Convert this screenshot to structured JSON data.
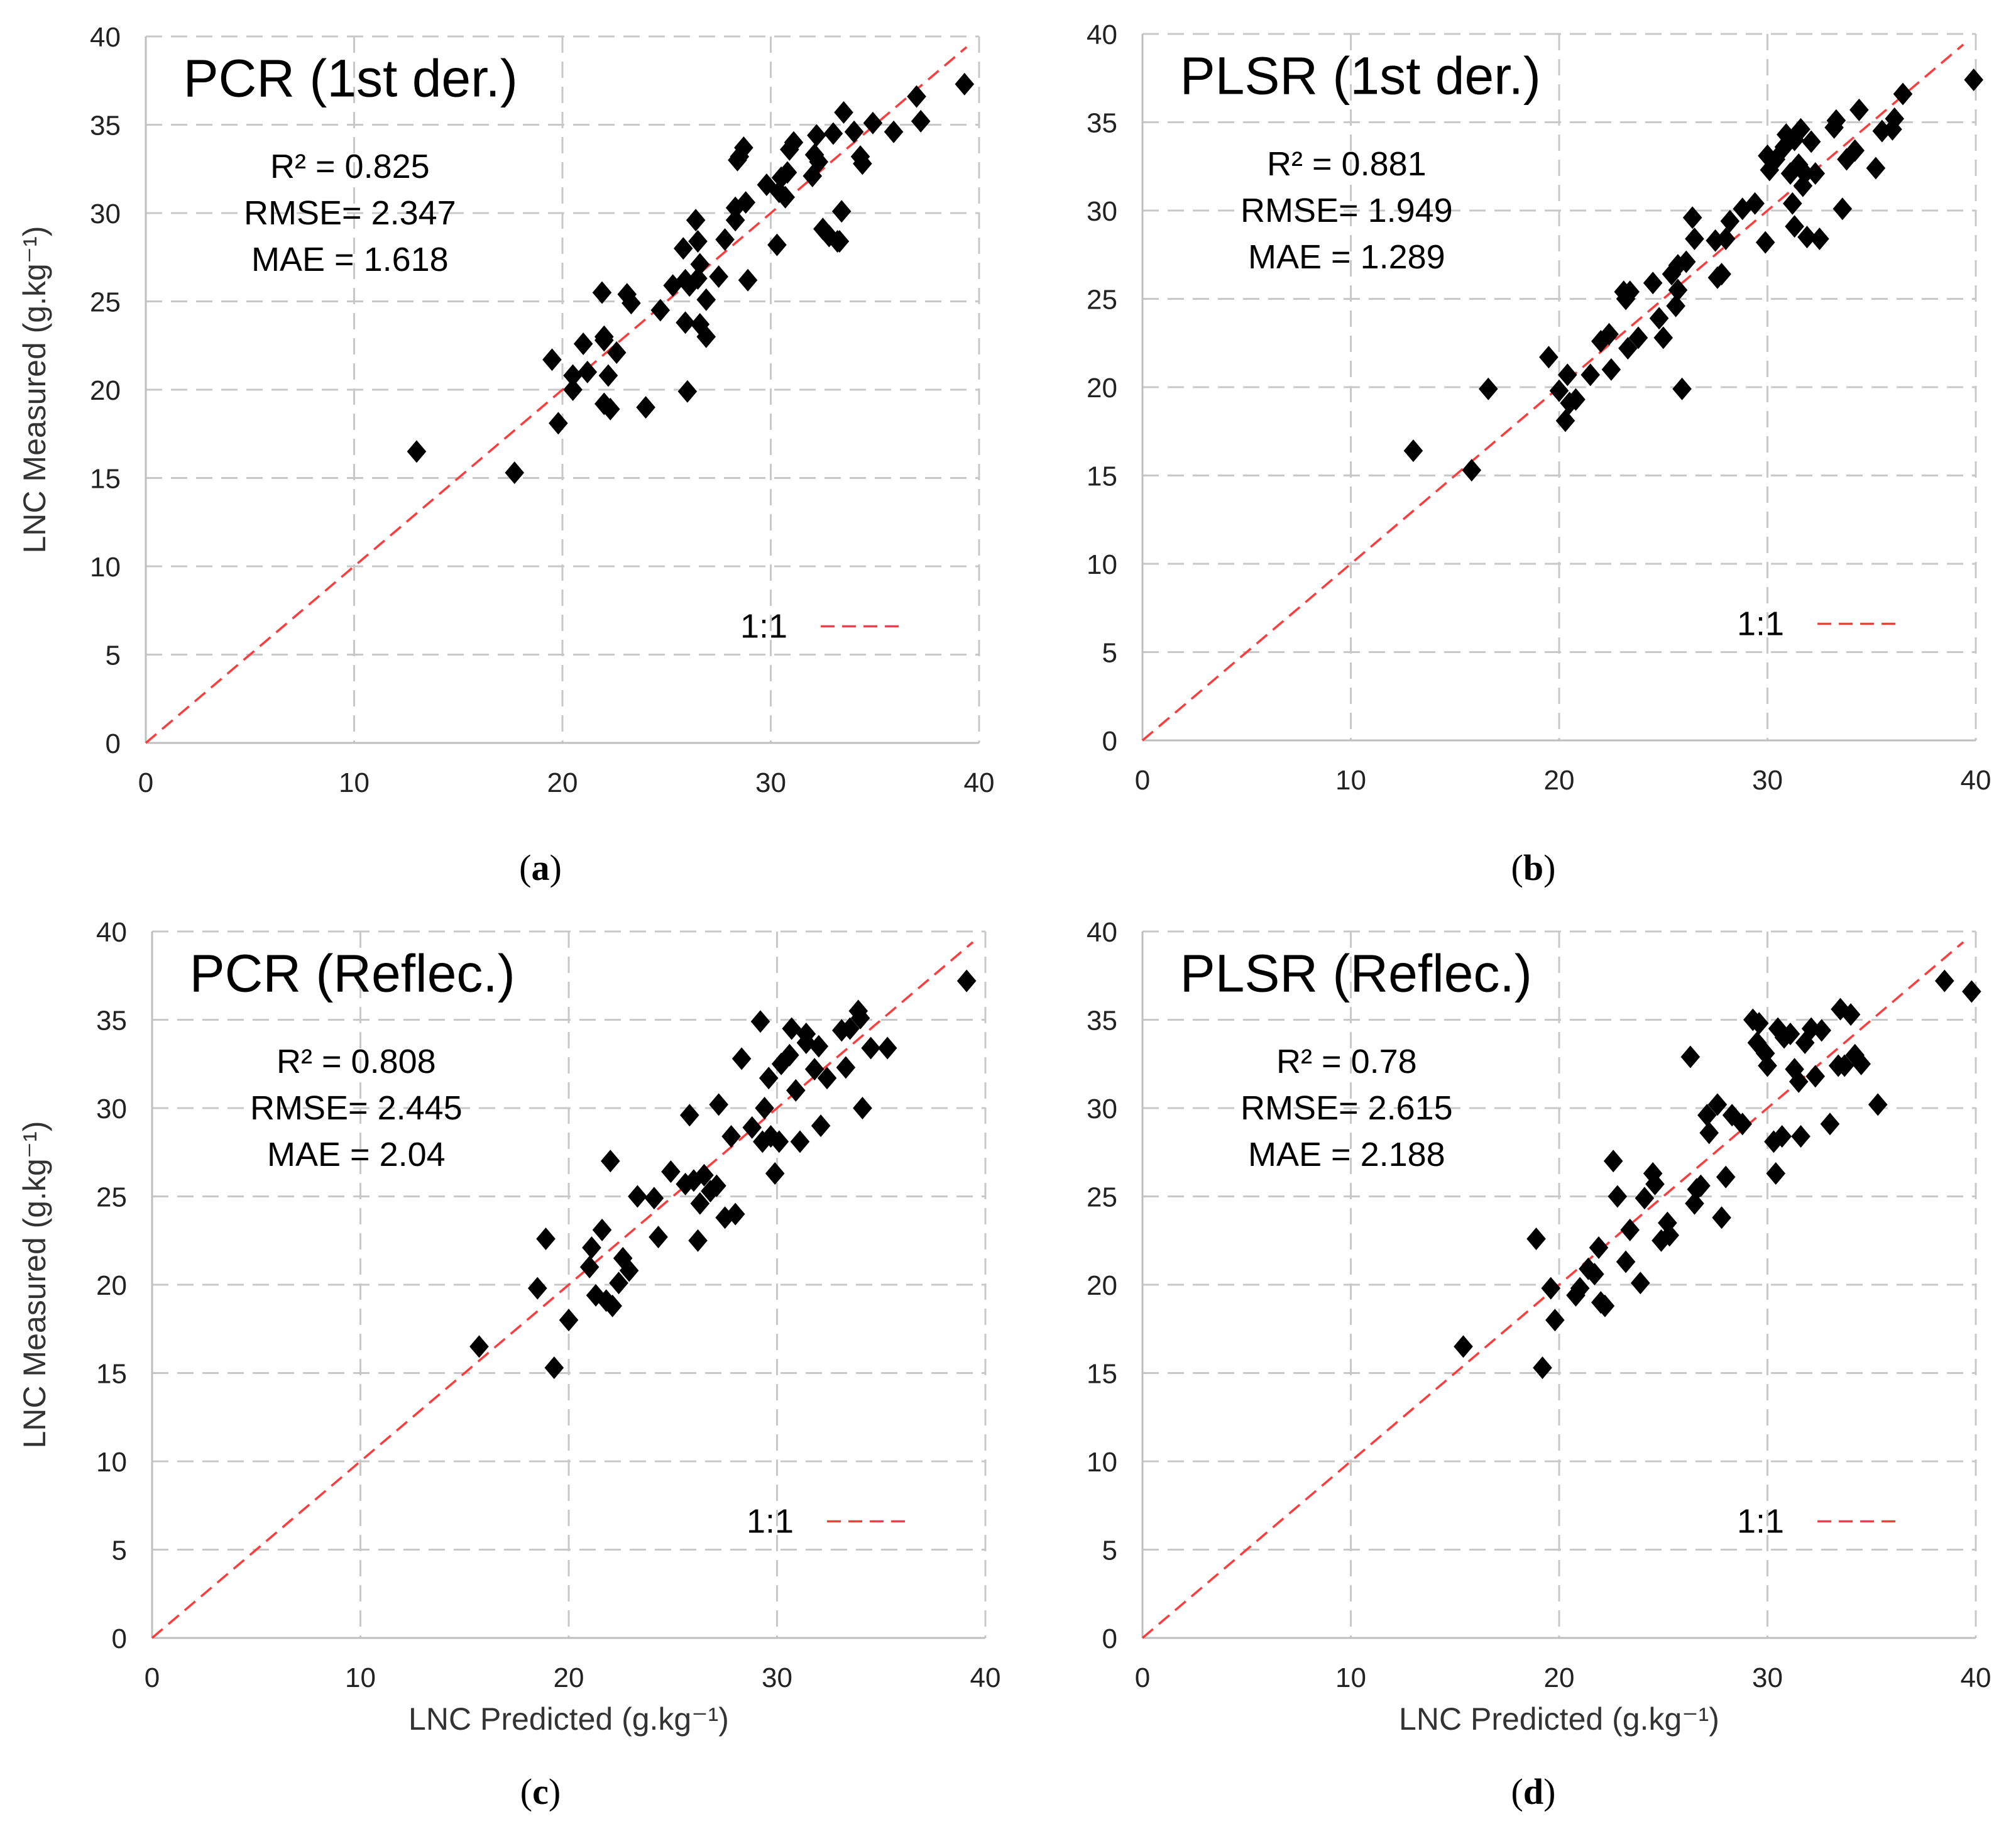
{
  "figure": {
    "y_axis_title": "LNC Measured (g.kg⁻¹)",
    "x_axis_title": "LNC Predicted (g.kg⁻¹)",
    "legend_label": "1:1",
    "line_color": "#ff3b3b",
    "marker_color": "#000000",
    "grid_color": "#c8c8c8"
  },
  "chart_data": [
    {
      "type": "scatter",
      "panel": "a",
      "caption_open": "(",
      "caption_letter": "a",
      "caption_close": ")",
      "title": "PCR (1st der.)",
      "stats": [
        "R² = 0.825",
        "RMSE= 2.347",
        "MAE = 1.618"
      ],
      "xlim": [
        0,
        40
      ],
      "ylim": [
        0,
        40
      ],
      "xticks": [
        "0",
        "10",
        "20",
        "30",
        "40"
      ],
      "yticks": [
        "0",
        "5",
        "10",
        "15",
        "20",
        "25",
        "30",
        "35",
        "40"
      ],
      "xlabel": "",
      "ylabel": "LNC Measured (g.kg⁻¹)",
      "reference_line": "1:1",
      "points": [
        [
          13,
          16.5
        ],
        [
          17.7,
          15.3
        ],
        [
          19.5,
          21.7
        ],
        [
          19.8,
          18.1
        ],
        [
          20.5,
          20.8
        ],
        [
          20.5,
          20
        ],
        [
          21,
          22.6
        ],
        [
          21.2,
          21
        ],
        [
          21.9,
          25.5
        ],
        [
          22,
          23
        ],
        [
          22,
          19.2
        ],
        [
          22,
          22.8
        ],
        [
          22.2,
          20.8
        ],
        [
          22.3,
          18.9
        ],
        [
          22.6,
          22.1
        ],
        [
          23.1,
          25.4
        ],
        [
          23.3,
          24.9
        ],
        [
          24,
          19
        ],
        [
          24.7,
          24.5
        ],
        [
          25.3,
          25.9
        ],
        [
          25.8,
          28
        ],
        [
          25.9,
          26.2
        ],
        [
          25.9,
          23.8
        ],
        [
          26,
          19.9
        ],
        [
          26.1,
          25.9
        ],
        [
          26.4,
          29.6
        ],
        [
          26.5,
          26.3
        ],
        [
          26.5,
          28.4
        ],
        [
          26.6,
          27.1
        ],
        [
          26.6,
          23.7
        ],
        [
          26.9,
          23
        ],
        [
          26.9,
          25.1
        ],
        [
          27.5,
          26.4
        ],
        [
          27.8,
          28.5
        ],
        [
          28.3,
          29.6
        ],
        [
          28.3,
          30.3
        ],
        [
          28.4,
          33
        ],
        [
          28.5,
          33.2
        ],
        [
          28.7,
          33.7
        ],
        [
          28.8,
          30.6
        ],
        [
          28.9,
          26.2
        ],
        [
          29.8,
          31.6
        ],
        [
          30.3,
          28.2
        ],
        [
          30.4,
          31.2
        ],
        [
          30.5,
          32
        ],
        [
          30.7,
          30.9
        ],
        [
          30.8,
          32.3
        ],
        [
          30.9,
          33.6
        ],
        [
          31.1,
          34
        ],
        [
          32,
          32.1
        ],
        [
          32.1,
          33.3
        ],
        [
          32.2,
          34.4
        ],
        [
          32.3,
          32.9
        ],
        [
          32.5,
          29.1
        ],
        [
          32.8,
          28.7
        ],
        [
          33,
          34.5
        ],
        [
          33.2,
          28.4
        ],
        [
          33.3,
          28.4
        ],
        [
          33.4,
          30.1
        ],
        [
          33.5,
          35.7
        ],
        [
          34,
          34.6
        ],
        [
          34.3,
          33.2
        ],
        [
          34.4,
          32.8
        ],
        [
          34.9,
          35.1
        ],
        [
          35.9,
          34.6
        ],
        [
          37,
          36.6
        ],
        [
          37.2,
          35.2
        ],
        [
          39.3,
          37.3
        ]
      ]
    },
    {
      "type": "scatter",
      "panel": "b",
      "caption_open": "(",
      "caption_letter": "b",
      "caption_close": ")",
      "title": "PLSR (1st der.)",
      "stats": [
        "R² = 0.881",
        "RMSE= 1.949",
        "MAE = 1.289"
      ],
      "xlim": [
        0,
        40
      ],
      "ylim": [
        0,
        40
      ],
      "xticks": [
        "0",
        "10",
        "20",
        "30",
        "40"
      ],
      "yticks": [
        "0",
        "5",
        "10",
        "15",
        "20",
        "25",
        "30",
        "35",
        "40"
      ],
      "xlabel": "",
      "ylabel": "",
      "reference_line": "1:1",
      "points": [
        [
          13,
          16.4
        ],
        [
          15.8,
          15.3
        ],
        [
          16.6,
          19.9
        ],
        [
          19.5,
          21.7
        ],
        [
          20,
          19.8
        ],
        [
          20.3,
          18.1
        ],
        [
          20.4,
          20.7
        ],
        [
          20.5,
          19.1
        ],
        [
          20.8,
          19.3
        ],
        [
          21.5,
          20.7
        ],
        [
          22,
          22.6
        ],
        [
          22.4,
          23
        ],
        [
          22.5,
          21
        ],
        [
          23.1,
          25.4
        ],
        [
          23.2,
          25
        ],
        [
          23.4,
          25.4
        ],
        [
          23.3,
          22.2
        ],
        [
          23.8,
          22.8
        ],
        [
          24.5,
          25.9
        ],
        [
          24.8,
          23.9
        ],
        [
          25,
          22.8
        ],
        [
          25.4,
          26.4
        ],
        [
          25.6,
          24.6
        ],
        [
          25.7,
          26.9
        ],
        [
          25.7,
          25.5
        ],
        [
          25.9,
          19.9
        ],
        [
          26.1,
          27.1
        ],
        [
          26.4,
          29.6
        ],
        [
          26.5,
          28.4
        ],
        [
          27.5,
          28.3
        ],
        [
          27.6,
          26.2
        ],
        [
          27.8,
          26.4
        ],
        [
          28,
          28.4
        ],
        [
          28.2,
          29.4
        ],
        [
          28.8,
          30.1
        ],
        [
          29.4,
          30.4
        ],
        [
          29.9,
          28.2
        ],
        [
          30,
          33.1
        ],
        [
          30.1,
          32.3
        ],
        [
          30.4,
          32.9
        ],
        [
          30.8,
          33.6
        ],
        [
          30.9,
          34.3
        ],
        [
          31.1,
          32.1
        ],
        [
          31.2,
          30.4
        ],
        [
          31.3,
          29.1
        ],
        [
          31.3,
          34
        ],
        [
          31.5,
          32.6
        ],
        [
          31.6,
          34.6
        ],
        [
          31.7,
          31.4
        ],
        [
          31.8,
          32.1
        ],
        [
          31.9,
          28.5
        ],
        [
          32.1,
          33.9
        ],
        [
          32.3,
          32.1
        ],
        [
          32.5,
          28.4
        ],
        [
          33.2,
          34.7
        ],
        [
          33.3,
          35.1
        ],
        [
          33.6,
          30.1
        ],
        [
          33.8,
          32.9
        ],
        [
          34.2,
          33.4
        ],
        [
          34.4,
          35.7
        ],
        [
          35.2,
          32.4
        ],
        [
          35.5,
          34.5
        ],
        [
          36,
          34.6
        ],
        [
          36.1,
          35.2
        ],
        [
          36.5,
          36.6
        ],
        [
          39.9,
          37.4
        ]
      ]
    },
    {
      "type": "scatter",
      "panel": "c",
      "caption_open": "(",
      "caption_letter": "c",
      "caption_close": ")",
      "title": "PCR (Reflec.)",
      "stats": [
        "R² = 0.808",
        "RMSE= 2.445",
        "MAE = 2.04"
      ],
      "xlim": [
        0,
        40
      ],
      "ylim": [
        0,
        40
      ],
      "xticks": [
        "0",
        "10",
        "20",
        "30",
        "40"
      ],
      "yticks": [
        "0",
        "5",
        "10",
        "15",
        "20",
        "25",
        "30",
        "35",
        "40"
      ],
      "xlabel": "LNC Predicted (g.kg⁻¹)",
      "ylabel": "LNC Measured (g.kg⁻¹)",
      "reference_line": "1:1",
      "points": [
        [
          15.7,
          16.5
        ],
        [
          18.5,
          19.8
        ],
        [
          18.9,
          22.6
        ],
        [
          19.3,
          15.3
        ],
        [
          20,
          18
        ],
        [
          21,
          21
        ],
        [
          21.1,
          22.1
        ],
        [
          21.3,
          19.4
        ],
        [
          21.6,
          23.1
        ],
        [
          21.8,
          19.1
        ],
        [
          22,
          27
        ],
        [
          22.1,
          18.8
        ],
        [
          22.4,
          20.1
        ],
        [
          22.6,
          21.5
        ],
        [
          22.9,
          20.8
        ],
        [
          23.3,
          25
        ],
        [
          24.1,
          24.9
        ],
        [
          24.3,
          22.7
        ],
        [
          24.9,
          26.4
        ],
        [
          25.6,
          25.7
        ],
        [
          25.8,
          29.6
        ],
        [
          26,
          25.9
        ],
        [
          26.2,
          22.5
        ],
        [
          26.3,
          24.6
        ],
        [
          26.5,
          26.2
        ],
        [
          26.8,
          25.3
        ],
        [
          27.1,
          25.6
        ],
        [
          27.2,
          30.2
        ],
        [
          27.5,
          23.8
        ],
        [
          27.8,
          28.4
        ],
        [
          28,
          24
        ],
        [
          28.3,
          32.8
        ],
        [
          28.8,
          28.9
        ],
        [
          29.2,
          34.9
        ],
        [
          29.3,
          28.1
        ],
        [
          29.4,
          30
        ],
        [
          29.6,
          31.7
        ],
        [
          29.7,
          28.4
        ],
        [
          29.9,
          26.3
        ],
        [
          30.1,
          28.1
        ],
        [
          30.2,
          32.5
        ],
        [
          30.6,
          33
        ],
        [
          30.7,
          34.5
        ],
        [
          30.9,
          31
        ],
        [
          31.1,
          28.1
        ],
        [
          31.4,
          34.2
        ],
        [
          31.4,
          33.7
        ],
        [
          31.8,
          32.2
        ],
        [
          32,
          33.5
        ],
        [
          32.1,
          29
        ],
        [
          32.4,
          31.7
        ],
        [
          33.1,
          34.4
        ],
        [
          33.3,
          32.3
        ],
        [
          33.5,
          34.5
        ],
        [
          33.9,
          35.5
        ],
        [
          34,
          35.1
        ],
        [
          34.1,
          30
        ],
        [
          34.5,
          33.4
        ],
        [
          35.3,
          33.4
        ],
        [
          39.1,
          37.2
        ]
      ]
    },
    {
      "type": "scatter",
      "panel": "d",
      "caption_open": "(",
      "caption_letter": "d",
      "caption_close": ")",
      "title": "PLSR (Reflec.)",
      "stats": [
        "R² = 0.78",
        "RMSE= 2.615",
        "MAE = 2.188"
      ],
      "xlim": [
        0,
        40
      ],
      "ylim": [
        0,
        40
      ],
      "xticks": [
        "0",
        "10",
        "20",
        "30",
        "40"
      ],
      "yticks": [
        "0",
        "5",
        "10",
        "15",
        "20",
        "25",
        "30",
        "35",
        "40"
      ],
      "xlabel": "LNC Predicted (g.kg⁻¹)",
      "ylabel": "",
      "reference_line": "1:1",
      "points": [
        [
          15.4,
          16.5
        ],
        [
          18.9,
          22.6
        ],
        [
          19.2,
          15.3
        ],
        [
          19.6,
          19.8
        ],
        [
          19.8,
          18
        ],
        [
          20.8,
          19.4
        ],
        [
          21,
          19.8
        ],
        [
          21.4,
          20.9
        ],
        [
          21.7,
          20.6
        ],
        [
          21.9,
          22.1
        ],
        [
          22,
          19
        ],
        [
          22.2,
          18.8
        ],
        [
          22.6,
          27
        ],
        [
          22.8,
          25
        ],
        [
          23.2,
          21.3
        ],
        [
          23.4,
          23.1
        ],
        [
          23.9,
          20.1
        ],
        [
          24.1,
          24.9
        ],
        [
          24.5,
          26.3
        ],
        [
          24.6,
          25.7
        ],
        [
          24.9,
          22.5
        ],
        [
          25.2,
          23.5
        ],
        [
          25.3,
          22.8
        ],
        [
          26.3,
          32.9
        ],
        [
          26.5,
          24.6
        ],
        [
          26.6,
          25.4
        ],
        [
          26.8,
          25.6
        ],
        [
          27.1,
          29.6
        ],
        [
          27.2,
          28.6
        ],
        [
          27.6,
          30.2
        ],
        [
          27.8,
          23.8
        ],
        [
          28,
          26.1
        ],
        [
          28.3,
          29.6
        ],
        [
          28.8,
          29.1
        ],
        [
          29.3,
          35
        ],
        [
          29.5,
          33.7
        ],
        [
          29.6,
          34.8
        ],
        [
          29.9,
          33.1
        ],
        [
          30,
          32.4
        ],
        [
          30.3,
          28.1
        ],
        [
          30.4,
          26.3
        ],
        [
          30.5,
          34.5
        ],
        [
          30.7,
          28.4
        ],
        [
          30.8,
          34
        ],
        [
          31.1,
          34.2
        ],
        [
          31.3,
          32.2
        ],
        [
          31.5,
          31.5
        ],
        [
          31.6,
          28.4
        ],
        [
          31.8,
          33.7
        ],
        [
          32.1,
          34.5
        ],
        [
          32.3,
          31.8
        ],
        [
          32.6,
          34.4
        ],
        [
          33,
          29.1
        ],
        [
          33.4,
          32.4
        ],
        [
          33.5,
          35.6
        ],
        [
          33.7,
          32.4
        ],
        [
          34,
          35.3
        ],
        [
          34.2,
          33
        ],
        [
          34.5,
          32.5
        ],
        [
          35.3,
          30.2
        ],
        [
          38.5,
          37.2
        ],
        [
          39.8,
          36.6
        ]
      ]
    }
  ]
}
